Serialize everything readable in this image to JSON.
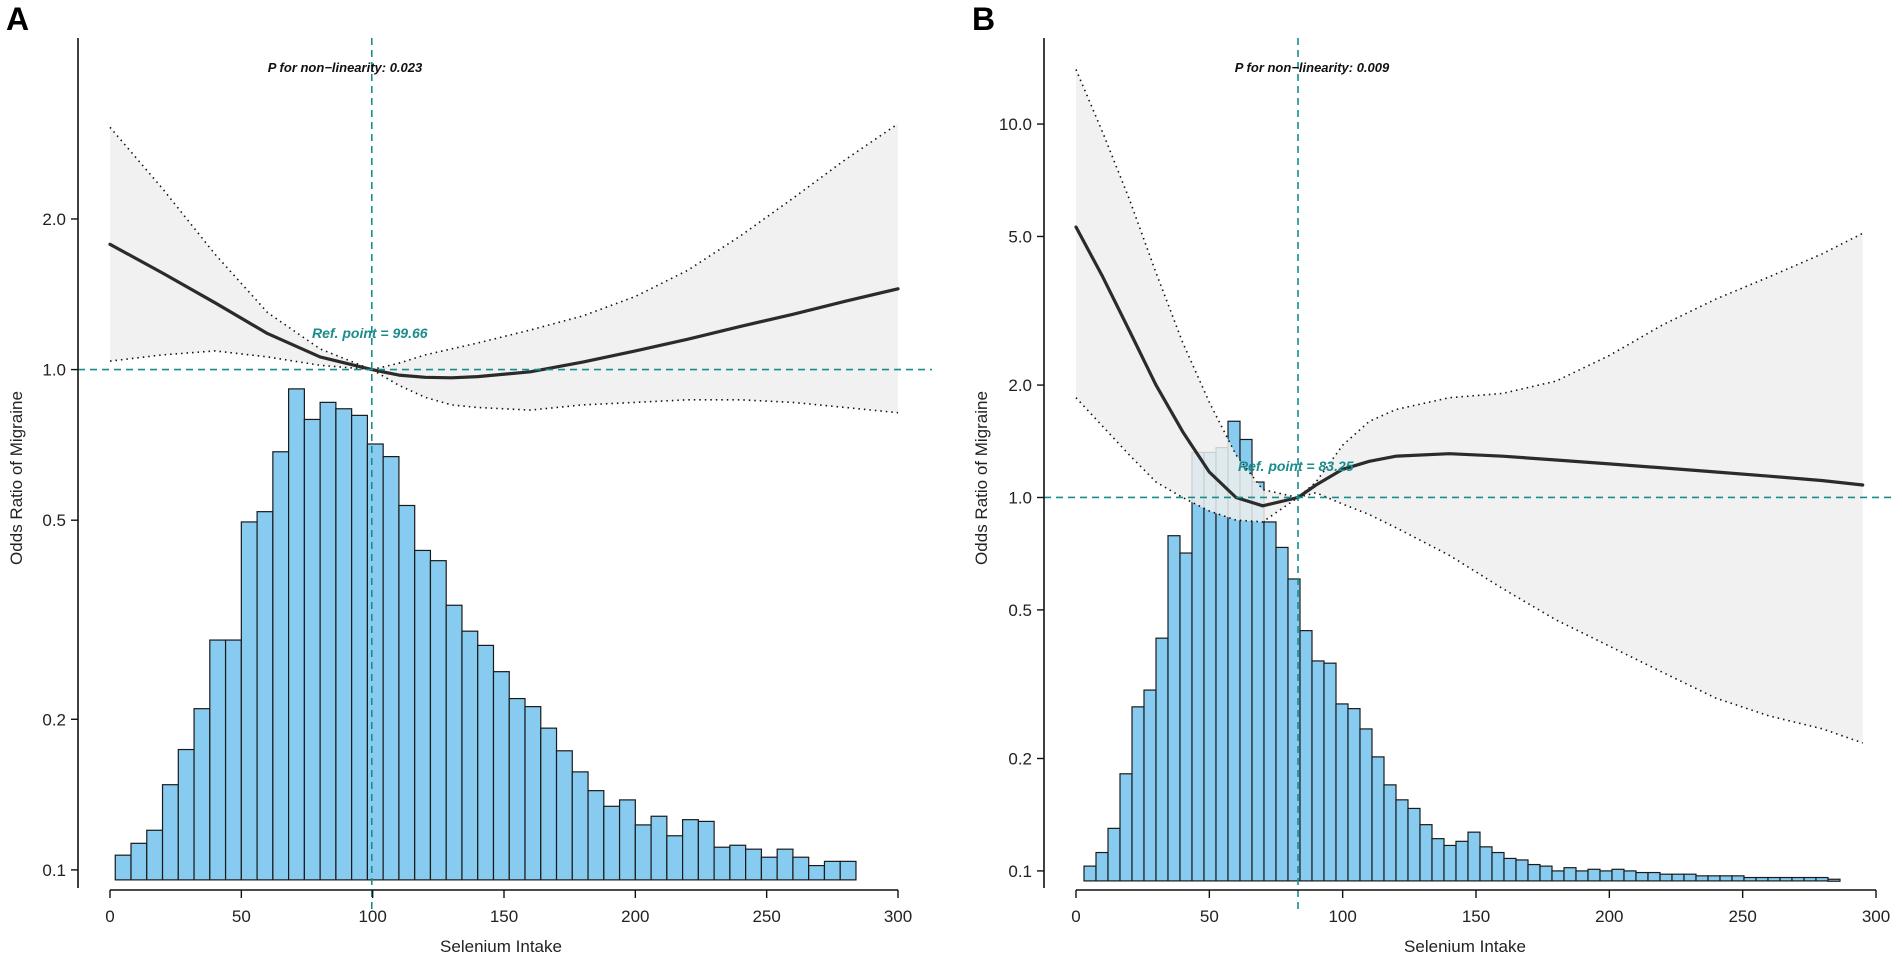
{
  "figure": {
    "ref_color": "#1a8c8c",
    "bar_color": "#87ccf0",
    "band_color": "#efefef"
  },
  "chart_data": [
    {
      "panel": "A",
      "type": "bar",
      "layers": [
        "histogram",
        "restricted-cubic-spline-line",
        "confidence-band"
      ],
      "title": "",
      "xlabel": "Selenium Intake",
      "ylabel": "Odds Ratio of Migraine",
      "xlim": [
        0,
        300
      ],
      "ylim_log": [
        0.092,
        4.6
      ],
      "x_ticks": [
        "0",
        "50",
        "100",
        "150",
        "200",
        "250",
        "300"
      ],
      "x_tick_values": [
        0,
        50,
        100,
        150,
        200,
        250,
        300
      ],
      "y_ticks": [
        "0.1",
        "0.2",
        "0.5",
        "1.0",
        "2.0"
      ],
      "y_tick_values": [
        0.1,
        0.2,
        0.5,
        1.0,
        2.0
      ],
      "p_nonlinearity_label": "P for non−linearity: 0.023",
      "ref_point_label": "Ref. point = 99.66",
      "ref_point_x": 99.66,
      "ref_y": 1.0,
      "histogram": {
        "bin_start": 2,
        "bin_width": 6,
        "heights_or_scale": [
          0.107,
          0.113,
          0.12,
          0.148,
          0.174,
          0.21,
          0.288,
          0.288,
          0.496,
          0.52,
          0.685,
          0.915,
          0.795,
          0.86,
          0.835,
          0.81,
          0.71,
          0.67,
          0.535,
          0.435,
          0.415,
          0.338,
          0.3,
          0.281,
          0.249,
          0.22,
          0.212,
          0.192,
          0.173,
          0.157,
          0.144,
          0.134,
          0.138,
          0.123,
          0.128,
          0.117,
          0.126,
          0.125,
          0.111,
          0.112,
          0.11,
          0.106,
          0.11,
          0.106,
          0.102,
          0.104,
          0.104
        ]
      },
      "spline_x": [
        0,
        20,
        40,
        60,
        80,
        99.66,
        110,
        120,
        130,
        140,
        160,
        180,
        200,
        220,
        240,
        260,
        280,
        300
      ],
      "spline_or": [
        1.78,
        1.56,
        1.36,
        1.18,
        1.06,
        1.0,
        0.975,
        0.965,
        0.963,
        0.968,
        0.99,
        1.035,
        1.09,
        1.15,
        1.22,
        1.29,
        1.37,
        1.45
      ],
      "ci_upper": [
        3.05,
        2.3,
        1.7,
        1.3,
        1.1,
        1.0,
        1.03,
        1.07,
        1.1,
        1.13,
        1.2,
        1.28,
        1.4,
        1.58,
        1.85,
        2.2,
        2.63,
        3.1
      ],
      "ci_lower": [
        1.04,
        1.07,
        1.09,
        1.06,
        1.02,
        1.0,
        0.93,
        0.88,
        0.85,
        0.84,
        0.83,
        0.85,
        0.86,
        0.87,
        0.87,
        0.86,
        0.84,
        0.82
      ]
    },
    {
      "panel": "B",
      "type": "bar",
      "layers": [
        "histogram",
        "restricted-cubic-spline-line",
        "confidence-band"
      ],
      "title": "",
      "xlabel": "Selenium Intake",
      "ylabel": "Odds Ratio of Migraine",
      "xlim": [
        0,
        300
      ],
      "ylim_log": [
        0.09,
        17
      ],
      "x_ticks": [
        "0",
        "50",
        "100",
        "150",
        "200",
        "250",
        "300"
      ],
      "x_tick_values": [
        0,
        50,
        100,
        150,
        200,
        250,
        300
      ],
      "y_ticks": [
        "0.1",
        "0.2",
        "0.5",
        "1.0",
        "2.0",
        "5.0",
        "10.0"
      ],
      "y_tick_values": [
        0.1,
        0.2,
        0.5,
        1.0,
        2.0,
        5.0,
        10.0
      ],
      "p_nonlinearity_label": "P for non−linearity: 0.009",
      "ref_point_label": "Ref. point = 83.25",
      "ref_point_x": 83.25,
      "ref_y": 1.0,
      "histogram": {
        "bin_start": 3,
        "bin_width": 4.5,
        "heights_or_scale": [
          0.103,
          0.112,
          0.13,
          0.182,
          0.275,
          0.305,
          0.42,
          0.79,
          0.71,
          1.32,
          1.32,
          1.36,
          1.6,
          1.43,
          1.1,
          0.86,
          0.735,
          0.605,
          0.44,
          0.365,
          0.36,
          0.28,
          0.272,
          0.24,
          0.202,
          0.17,
          0.155,
          0.147,
          0.133,
          0.122,
          0.117,
          0.12,
          0.127,
          0.116,
          0.112,
          0.108,
          0.107,
          0.104,
          0.103,
          0.1,
          0.102,
          0.1,
          0.101,
          0.1,
          0.101,
          0.1,
          0.099,
          0.099,
          0.098,
          0.098,
          0.098,
          0.097,
          0.097,
          0.097,
          0.097,
          0.096,
          0.096,
          0.096,
          0.096,
          0.096,
          0.096,
          0.096,
          0.095
        ]
      },
      "spline_x": [
        0,
        10,
        20,
        30,
        40,
        50,
        60,
        70,
        83.25,
        90,
        100,
        110,
        120,
        140,
        160,
        180,
        200,
        220,
        240,
        260,
        280,
        295
      ],
      "spline_or": [
        5.3,
        3.9,
        2.8,
        2.0,
        1.5,
        1.17,
        1.0,
        0.95,
        1.0,
        1.08,
        1.19,
        1.25,
        1.29,
        1.31,
        1.29,
        1.26,
        1.23,
        1.2,
        1.17,
        1.14,
        1.11,
        1.08
      ],
      "ci_upper": [
        14.0,
        9.5,
        6.3,
        4.0,
        2.6,
        1.8,
        1.3,
        1.05,
        1.0,
        1.1,
        1.38,
        1.6,
        1.72,
        1.85,
        1.9,
        2.05,
        2.4,
        2.9,
        3.4,
        3.9,
        4.5,
        5.1
      ],
      "ci_lower": [
        1.85,
        1.55,
        1.3,
        1.1,
        1.0,
        0.92,
        0.87,
        0.86,
        1.0,
        1.03,
        0.96,
        0.9,
        0.83,
        0.7,
        0.57,
        0.47,
        0.4,
        0.34,
        0.29,
        0.26,
        0.24,
        0.22
      ]
    }
  ]
}
